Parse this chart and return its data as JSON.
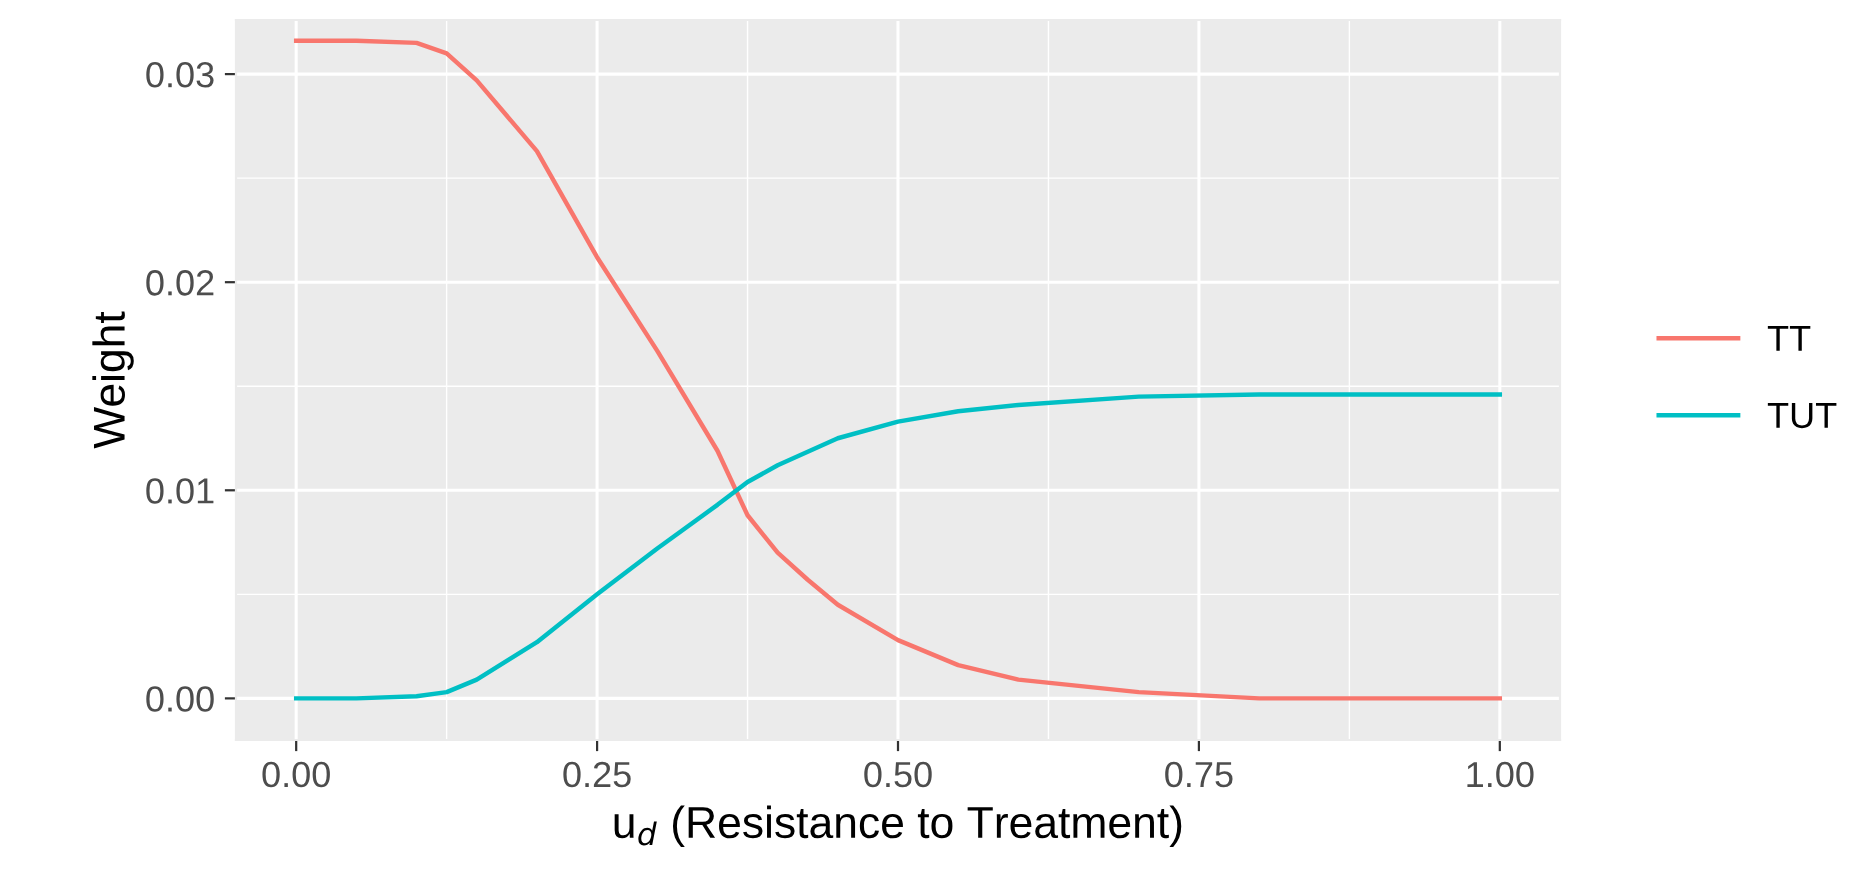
{
  "chart_data": {
    "type": "line",
    "xlabel": "u$_{d}$ (Resistance to Treatment)",
    "ylabel": "Weight",
    "xlim": [
      -0.05,
      1.05
    ],
    "ylim": [
      -0.002,
      0.0326
    ],
    "xticks": [
      {
        "value": 0,
        "label": "0.00"
      },
      {
        "value": 0.25,
        "label": "0.25"
      },
      {
        "value": 0.5,
        "label": "0.50"
      },
      {
        "value": 0.75,
        "label": "0.75"
      },
      {
        "value": 1,
        "label": "1.00"
      }
    ],
    "yticks": [
      {
        "value": 0,
        "label": "0.00"
      },
      {
        "value": 0.01,
        "label": "0.01"
      },
      {
        "value": 0.02,
        "label": "0.02"
      },
      {
        "value": 0.03,
        "label": "0.03"
      }
    ],
    "grid": true,
    "legend": "right",
    "marker": "none",
    "line_style": "solid",
    "series": [
      {
        "name": "TT",
        "color": "#f8766d",
        "x": [
          0,
          0.05,
          0.1,
          0.125,
          0.15,
          0.2,
          0.25,
          0.3,
          0.35,
          0.375,
          0.4,
          0.425,
          0.45,
          0.5,
          0.55,
          0.6,
          0.7,
          0.8,
          0.9,
          1.0
        ],
        "values": [
          0.0316,
          0.0316,
          0.0315,
          0.031,
          0.0297,
          0.0263,
          0.0212,
          0.0167,
          0.0119,
          0.0088,
          0.007,
          0.0057,
          0.0045,
          0.0028,
          0.0016,
          0.0009,
          0.0003,
          0.0,
          0.0,
          0.0
        ]
      },
      {
        "name": "TUT",
        "color": "#00bfc4",
        "x": [
          0,
          0.05,
          0.1,
          0.125,
          0.15,
          0.2,
          0.25,
          0.3,
          0.35,
          0.375,
          0.4,
          0.45,
          0.5,
          0.55,
          0.6,
          0.7,
          0.8,
          0.9,
          1.0
        ],
        "values": [
          0.0,
          0.0,
          0.0001,
          0.0003,
          0.0009,
          0.0027,
          0.005,
          0.0072,
          0.0093,
          0.0104,
          0.0112,
          0.0125,
          0.0133,
          0.0138,
          0.0141,
          0.0145,
          0.0146,
          0.0146,
          0.0146
        ]
      }
    ]
  }
}
